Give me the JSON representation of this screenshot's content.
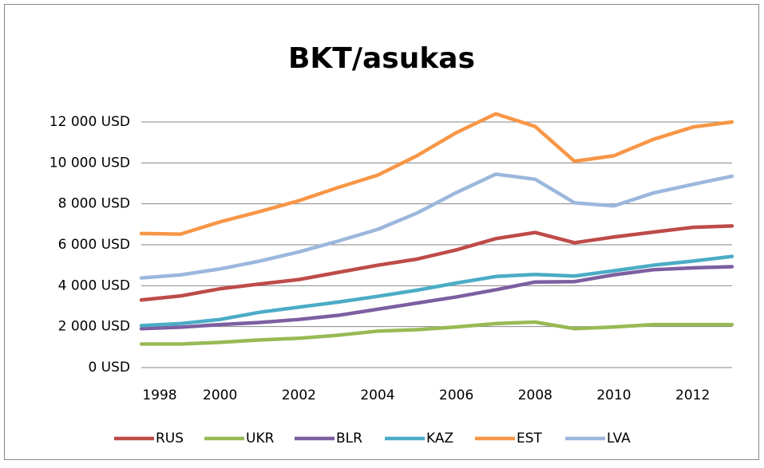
{
  "chart_data": {
    "type": "line",
    "title": "BKT/asukas",
    "x": [
      1998,
      1999,
      2000,
      2001,
      2002,
      2003,
      2004,
      2005,
      2006,
      2007,
      2008,
      2009,
      2010,
      2011,
      2012,
      2013
    ],
    "xlim": [
      1998,
      2013
    ],
    "xticks": [
      1998,
      2000,
      2002,
      2004,
      2006,
      2008,
      2010,
      2012
    ],
    "ylim": [
      0,
      12000
    ],
    "yticks": [
      {
        "value": 0,
        "label": "0 USD"
      },
      {
        "value": 2000,
        "label": "2 000 USD"
      },
      {
        "value": 4000,
        "label": "4 000 USD"
      },
      {
        "value": 6000,
        "label": "6 000 USD"
      },
      {
        "value": 8000,
        "label": "8 000 USD"
      },
      {
        "value": 10000,
        "label": "10 000 USD"
      },
      {
        "value": 12000,
        "label": "12 000 USD"
      }
    ],
    "grid": true,
    "legend": "bottom",
    "series": [
      {
        "name": "RUS",
        "color": "#be4b48",
        "values": [
          3300,
          3500,
          3850,
          4080,
          4300,
          4650,
          5000,
          5300,
          5750,
          6300,
          6600,
          6100,
          6380,
          6620,
          6850,
          6920
        ]
      },
      {
        "name": "UKR",
        "color": "#98b954",
        "values": [
          1150,
          1150,
          1230,
          1350,
          1430,
          1580,
          1780,
          1850,
          1980,
          2150,
          2220,
          1900,
          1980,
          2100,
          2100,
          2100
        ]
      },
      {
        "name": "BLR",
        "color": "#7d5fa0",
        "values": [
          1900,
          1970,
          2100,
          2200,
          2350,
          2550,
          2850,
          3150,
          3450,
          3800,
          4180,
          4200,
          4530,
          4780,
          4870,
          4930
        ]
      },
      {
        "name": "KAZ",
        "color": "#4bacc6",
        "values": [
          2050,
          2150,
          2350,
          2700,
          2950,
          3200,
          3480,
          3780,
          4130,
          4450,
          4550,
          4470,
          4730,
          5000,
          5200,
          5430
        ]
      },
      {
        "name": "EST",
        "color": "#f79646",
        "values": [
          6550,
          6520,
          7120,
          7620,
          8150,
          8800,
          9400,
          10350,
          11480,
          12400,
          11780,
          10080,
          10350,
          11150,
          11750,
          12000
        ]
      },
      {
        "name": "LVA",
        "color": "#9bb7dc",
        "values": [
          4380,
          4530,
          4820,
          5200,
          5650,
          6180,
          6750,
          7550,
          8550,
          9450,
          9200,
          8050,
          7900,
          8530,
          8950,
          9350
        ]
      }
    ]
  }
}
